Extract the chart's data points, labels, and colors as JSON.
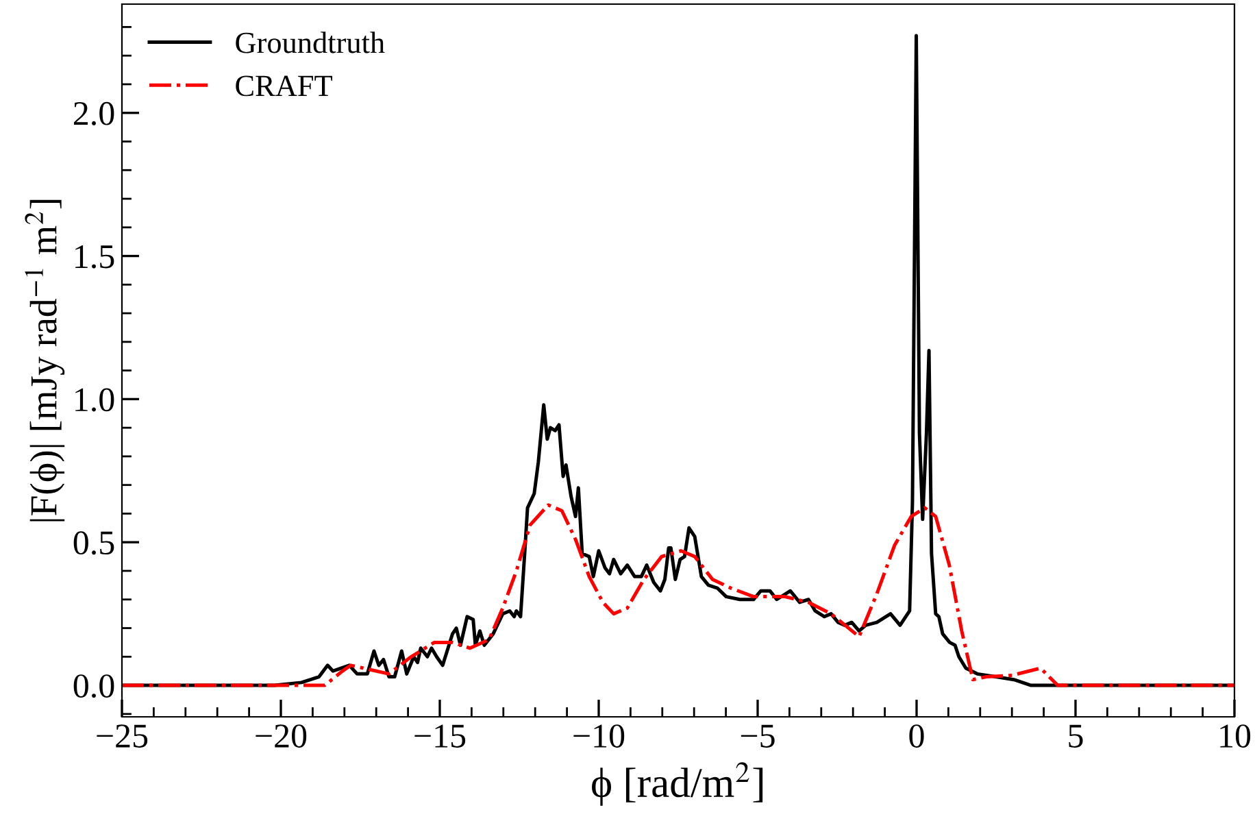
{
  "chart_data": {
    "type": "line",
    "xlabel": "ϕ [rad/m$^{2}$]",
    "ylabel": "|F(ϕ)| [mJy rad$^{−1}$ m$^{2}$]",
    "xlim": [
      -25,
      10
    ],
    "xticks": [
      -25,
      -20,
      -15,
      -10,
      -5,
      0,
      5,
      10
    ],
    "ylim": [
      -0.11,
      2.38
    ],
    "yticks": [
      {
        "value": 0,
        "label": "0.0"
      },
      0.5,
      {
        "value": 1,
        "label": "1.0"
      },
      1.5,
      {
        "value": 2,
        "label": "2.0"
      }
    ],
    "legend": "top left",
    "grid": false,
    "series": [
      {
        "name": "Groundtruth",
        "color": "#000000",
        "line_style": "solid",
        "x": [
          -25,
          -20.2,
          -19.35,
          -18.8,
          -18.53,
          -18.36,
          -17.85,
          -17.6,
          -17.28,
          -17.07,
          -16.92,
          -16.77,
          -16.6,
          -16.42,
          -16.2,
          -16.04,
          -15.82,
          -15.7,
          -15.6,
          -15.39,
          -15.26,
          -15.1,
          -14.91,
          -14.6,
          -14.48,
          -14.35,
          -14.14,
          -13.95,
          -13.88,
          -13.74,
          -13.6,
          -13.32,
          -13.02,
          -12.8,
          -12.66,
          -12.59,
          -12.46,
          -12.33,
          -12.24,
          -12.03,
          -11.9,
          -11.73,
          -11.62,
          -11.52,
          -11.37,
          -11.25,
          -11.12,
          -11.03,
          -10.87,
          -10.73,
          -10.64,
          -10.52,
          -10.3,
          -10.17,
          -10.0,
          -9.8,
          -9.66,
          -9.53,
          -9.31,
          -9.1,
          -8.87,
          -8.66,
          -8.49,
          -8.27,
          -8.06,
          -7.92,
          -7.8,
          -7.73,
          -7.59,
          -7.44,
          -7.3,
          -7.16,
          -6.98,
          -6.77,
          -6.55,
          -6.27,
          -5.99,
          -5.56,
          -5.13,
          -4.9,
          -4.61,
          -4.4,
          -3.97,
          -3.68,
          -3.4,
          -3.19,
          -2.9,
          -2.69,
          -2.47,
          -2.26,
          -2.04,
          -1.81,
          -1.6,
          -1.25,
          -0.82,
          -0.52,
          -0.22,
          -0.13,
          -0.01,
          0.09,
          0.19,
          0.31,
          0.39,
          0.47,
          0.6,
          0.7,
          0.82,
          1.04,
          1.21,
          1.33,
          1.55,
          1.91,
          2.49,
          3.06,
          3.6,
          10
        ],
        "values": [
          0,
          0,
          0.01,
          0.03,
          0.07,
          0.05,
          0.07,
          0.04,
          0.04,
          0.12,
          0.07,
          0.09,
          0.03,
          0.03,
          0.12,
          0.04,
          0.1,
          0.08,
          0.13,
          0.1,
          0.13,
          0.1,
          0.07,
          0.18,
          0.2,
          0.14,
          0.24,
          0.23,
          0.14,
          0.19,
          0.14,
          0.18,
          0.25,
          0.26,
          0.24,
          0.26,
          0.24,
          0.46,
          0.62,
          0.67,
          0.78,
          0.98,
          0.86,
          0.9,
          0.89,
          0.91,
          0.73,
          0.77,
          0.66,
          0.59,
          0.69,
          0.46,
          0.45,
          0.38,
          0.47,
          0.41,
          0.39,
          0.44,
          0.39,
          0.42,
          0.38,
          0.38,
          0.42,
          0.36,
          0.33,
          0.37,
          0.48,
          0.48,
          0.37,
          0.44,
          0.45,
          0.55,
          0.52,
          0.38,
          0.35,
          0.34,
          0.31,
          0.3,
          0.3,
          0.33,
          0.33,
          0.3,
          0.33,
          0.29,
          0.3,
          0.26,
          0.24,
          0.25,
          0.22,
          0.21,
          0.22,
          0.19,
          0.21,
          0.22,
          0.25,
          0.21,
          0.26,
          0.64,
          2.27,
          0.88,
          0.58,
          0.88,
          1.17,
          0.46,
          0.25,
          0.24,
          0.18,
          0.15,
          0.14,
          0.1,
          0.06,
          0.04,
          0.03,
          0.02,
          0,
          0
        ]
      },
      {
        "name": "CRAFT",
        "color": "#ff0000",
        "line_style": "dashdot",
        "x": [
          -25,
          -18.62,
          -18.06,
          -17.8,
          -17.4,
          -16.6,
          -15.9,
          -15.17,
          -14.6,
          -14.05,
          -13.45,
          -13.02,
          -12.59,
          -12.16,
          -11.59,
          -11.16,
          -10.73,
          -10.3,
          -9.87,
          -9.53,
          -9.1,
          -8.58,
          -8.02,
          -7.41,
          -6.98,
          -6.42,
          -5.85,
          -5.13,
          -4.14,
          -3.4,
          -2.69,
          -1.81,
          -1.25,
          -0.69,
          -0.17,
          0.26,
          0.6,
          1.03,
          1.42,
          1.77,
          2.2,
          3.0,
          3.9,
          4.44,
          10
        ],
        "values": [
          0,
          0,
          0.05,
          0.07,
          0.06,
          0.04,
          0.1,
          0.15,
          0.15,
          0.13,
          0.16,
          0.27,
          0.4,
          0.56,
          0.63,
          0.61,
          0.51,
          0.38,
          0.29,
          0.25,
          0.27,
          0.37,
          0.45,
          0.47,
          0.45,
          0.37,
          0.34,
          0.31,
          0.31,
          0.29,
          0.25,
          0.17,
          0.32,
          0.49,
          0.59,
          0.62,
          0.59,
          0.42,
          0.19,
          0.02,
          0.03,
          0.035,
          0.06,
          0,
          0
        ]
      }
    ]
  }
}
